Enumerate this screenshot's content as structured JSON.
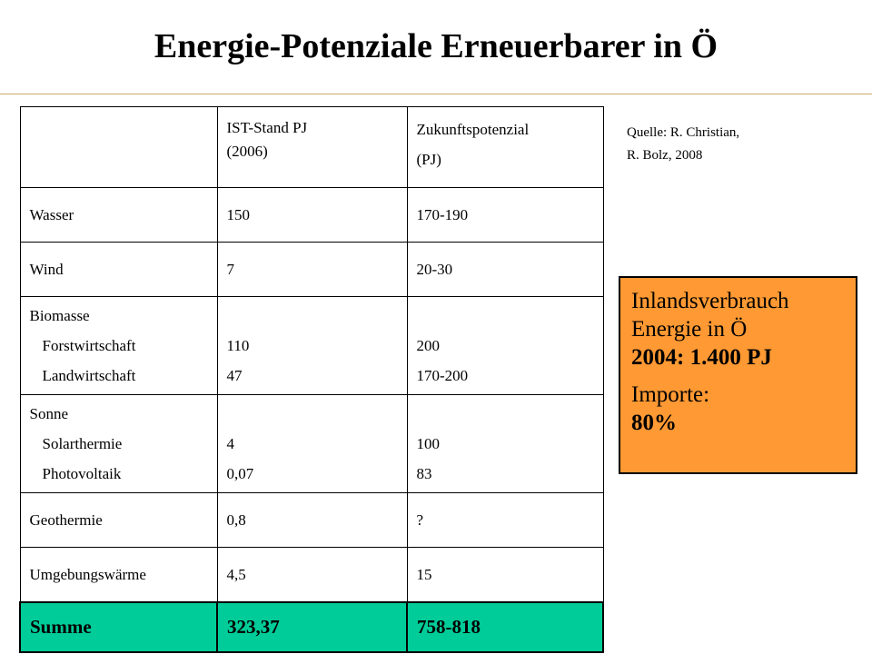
{
  "title": "Energie-Potenziale Erneuerbarer in Ö",
  "source": {
    "line1": "Quelle: R. Christian,",
    "line2": "R. Bolz, 2008"
  },
  "table": {
    "header": {
      "col1_line1": "IST-Stand PJ",
      "col1_line2": "(2006)",
      "col2_line1": "Zukunftspotenzial",
      "col2_line2": "(PJ)"
    },
    "rows": [
      {
        "label": "Wasser",
        "ist": "150",
        "future": "170-190"
      },
      {
        "label": "Wind",
        "ist": "7",
        "future": "20-30"
      },
      {
        "label": "Biomasse",
        "sub": [
          {
            "label": "Forstwirtschaft",
            "ist": "110",
            "future": "200"
          },
          {
            "label": "Landwirtschaft",
            "ist": "47",
            "future": "170-200"
          }
        ]
      },
      {
        "label": "Sonne",
        "sub": [
          {
            "label": "Solarthermie",
            "ist": "4",
            "future": "100"
          },
          {
            "label": "Photovoltaik",
            "ist": "0,07",
            "future": "83"
          }
        ]
      },
      {
        "label": "Geothermie",
        "ist": "0,8",
        "future": "?"
      },
      {
        "label": "Umgebungswärme",
        "ist": "4,5",
        "future": "15"
      }
    ],
    "sum": {
      "label": "Summe",
      "ist": "323,37",
      "future": "758-818"
    }
  },
  "info_box": {
    "line1": "Inlandsverbrauch",
    "line2": "Energie in Ö",
    "line3": "2004: 1.400 PJ",
    "line4": "Importe:",
    "line5": "80%",
    "background_color": "#ff9933"
  },
  "colors": {
    "sum_row": "#00cc99",
    "title_rule": "#c9a86a"
  }
}
